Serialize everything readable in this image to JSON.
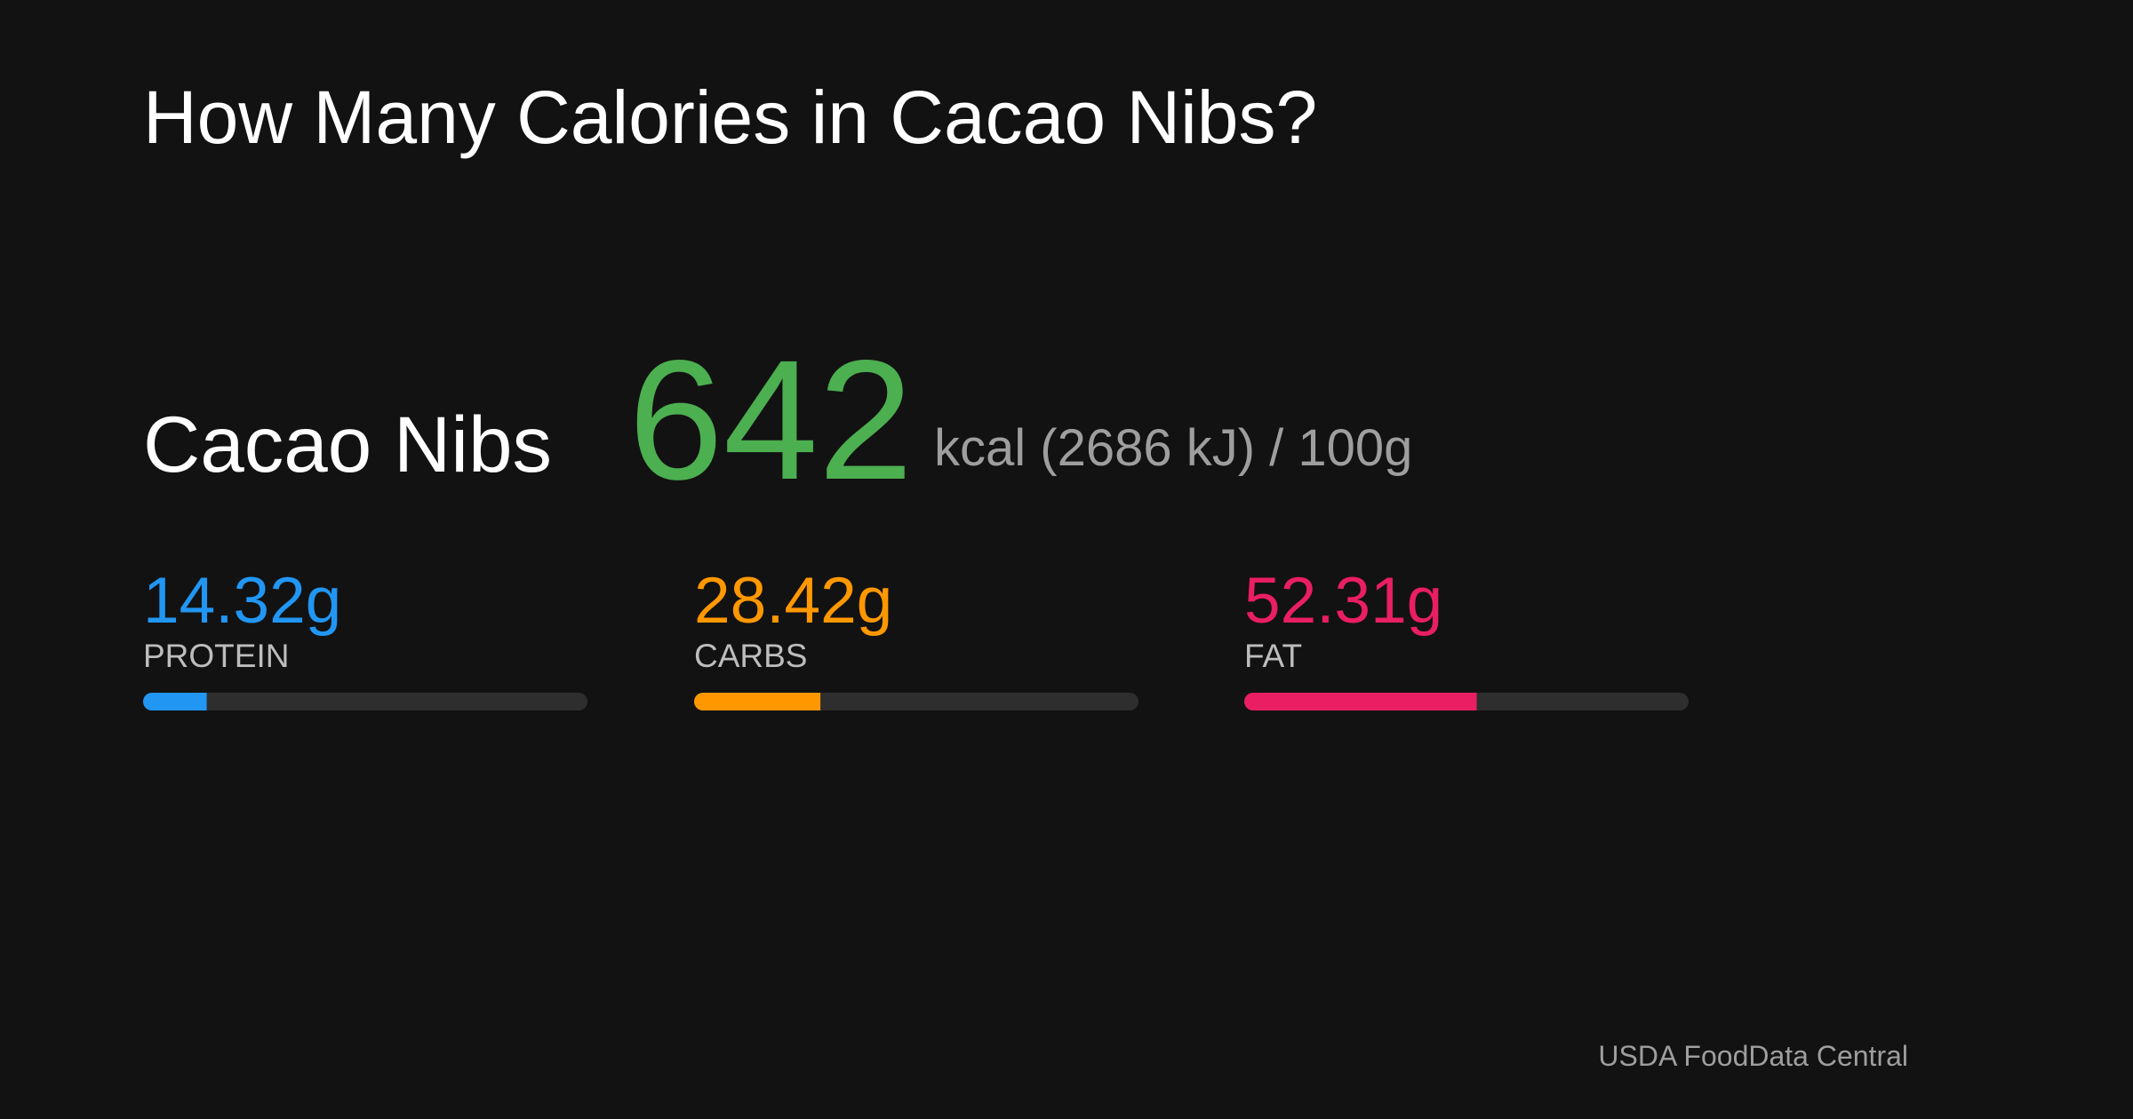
{
  "title": "How Many Calories in Cacao Nibs?",
  "food": {
    "name": "Cacao Nibs",
    "calories": 642,
    "calories_color": "#4caf50",
    "unit_text": "kcal (2686 kJ) / 100g"
  },
  "macros": {
    "xlim": [
      0,
      100
    ],
    "track_color": "#2e2e2e",
    "items": [
      {
        "name": "PROTEIN",
        "value": 14.32,
        "value_label": "14.32g",
        "color": "#2196f3"
      },
      {
        "name": "CARBS",
        "value": 28.42,
        "value_label": "28.42g",
        "color": "#ff9800"
      },
      {
        "name": "FAT",
        "value": 52.31,
        "value_label": "52.31g",
        "color": "#e91e63"
      }
    ]
  },
  "source": "USDA FoodData Central"
}
